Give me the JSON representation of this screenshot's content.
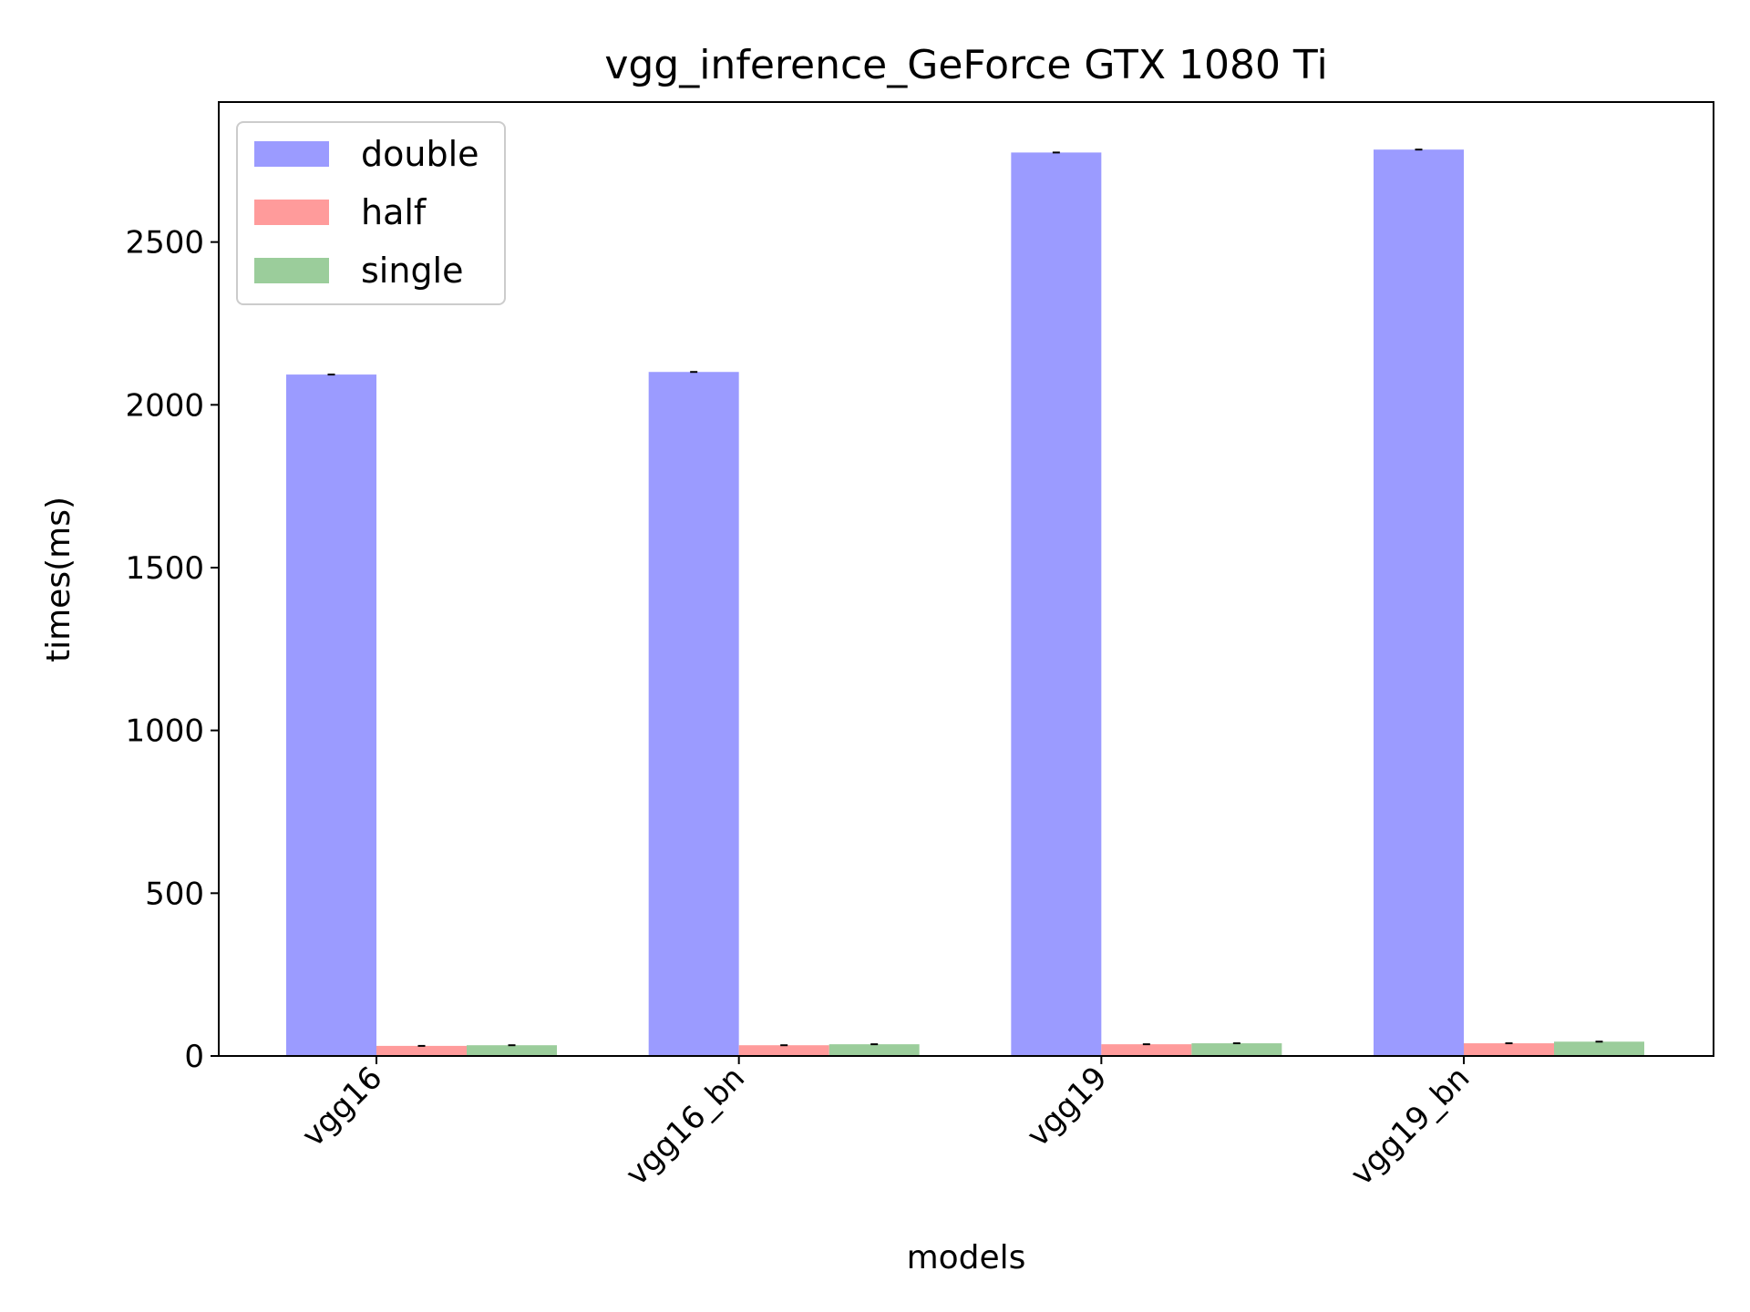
{
  "chart_data": {
    "type": "bar",
    "title": "vgg_inference_GeForce GTX 1080 Ti",
    "xlabel": "models",
    "ylabel": "times(ms)",
    "categories": [
      "vgg16",
      "vgg16_bn",
      "vgg19",
      "vgg19_bn"
    ],
    "series": [
      {
        "name": "double",
        "color": "#9b9bff",
        "values": [
          2093,
          2101,
          2775,
          2784
        ]
      },
      {
        "name": "half",
        "color": "#ff9b9b",
        "values": [
          31,
          33,
          36,
          39
        ]
      },
      {
        "name": "single",
        "color": "#9bcd9b",
        "values": [
          33,
          36,
          39,
          44
        ]
      }
    ],
    "ylim": [
      0,
      2930
    ],
    "yticks": [
      0,
      500,
      1000,
      1500,
      2000,
      2500
    ],
    "legend_position": "top-left",
    "grid": false
  }
}
